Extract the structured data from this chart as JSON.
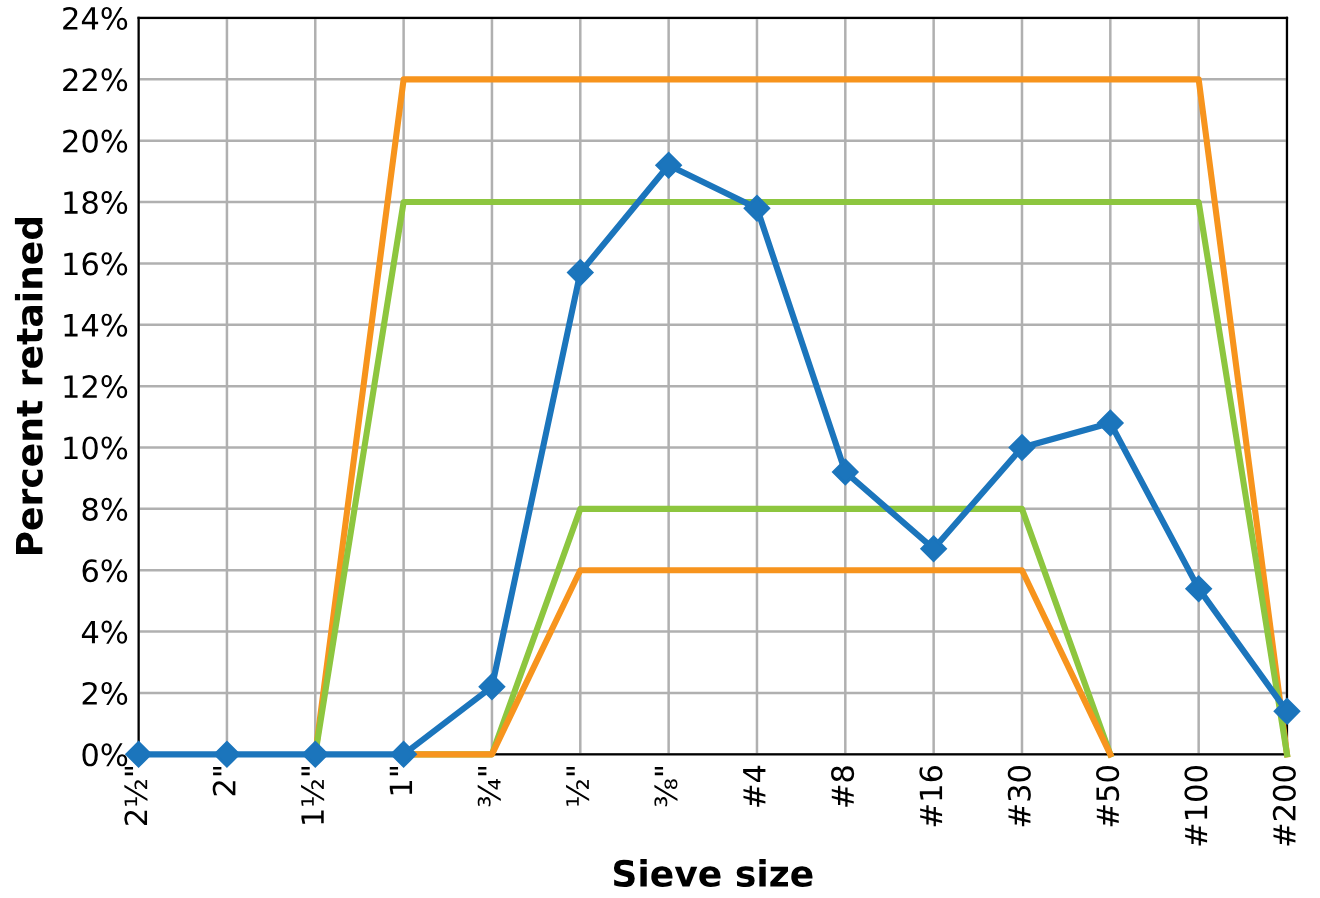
{
  "chart_data": {
    "type": "line",
    "xlabel": "Sieve size",
    "ylabel": "Percent retained",
    "categories": [
      "2½\"",
      "2\"",
      "1½\"",
      "1\"",
      "¾\"",
      "½\"",
      "⅜\"",
      "#4",
      "#8",
      "#16",
      "#30",
      "#50",
      "#100",
      "#200"
    ],
    "series": [
      {
        "color": "#f7941d",
        "marker": "none",
        "values": [
          null,
          null,
          0,
          22,
          22,
          22,
          22,
          22,
          22,
          22,
          22,
          22,
          22,
          0
        ]
      },
      {
        "color": "#8dc63f",
        "marker": "none",
        "values": [
          null,
          null,
          0,
          18,
          18,
          18,
          18,
          18,
          18,
          18,
          18,
          18,
          18,
          0
        ]
      },
      {
        "color": "#8dc63f",
        "marker": "none",
        "values": [
          null,
          null,
          null,
          0,
          0,
          8,
          8,
          8,
          8,
          8,
          8,
          0,
          null,
          null
        ]
      },
      {
        "color": "#f7941d",
        "marker": "none",
        "values": [
          null,
          null,
          null,
          0,
          0,
          6,
          6,
          6,
          6,
          6,
          6,
          0,
          null,
          null
        ]
      },
      {
        "color": "#1b75bc",
        "marker": "diamond",
        "values": [
          0,
          0,
          0,
          0,
          2.2,
          15.7,
          19.2,
          17.8,
          9.2,
          6.7,
          10,
          10.8,
          5.4,
          1.4
        ]
      }
    ],
    "ylim": [
      0,
      24
    ],
    "yticks": [
      {
        "value": 0,
        "label": "0%"
      },
      {
        "value": 2,
        "label": "2%"
      },
      {
        "value": 4,
        "label": "4%"
      },
      {
        "value": 6,
        "label": "6%"
      },
      {
        "value": 8,
        "label": "8%"
      },
      {
        "value": 10,
        "label": "10%"
      },
      {
        "value": 12,
        "label": "12%"
      },
      {
        "value": 14,
        "label": "14%"
      },
      {
        "value": 16,
        "label": "16%"
      },
      {
        "value": 18,
        "label": "18%"
      },
      {
        "value": 20,
        "label": "20%"
      },
      {
        "value": 22,
        "label": "22%"
      },
      {
        "value": 24,
        "label": "24%"
      }
    ],
    "grid": true,
    "legend": false
  }
}
